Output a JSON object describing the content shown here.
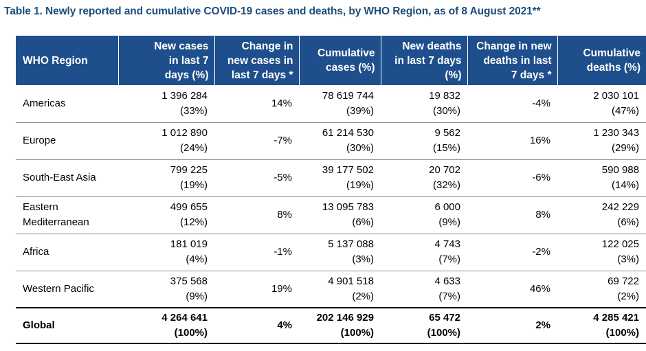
{
  "title": "Table 1. Newly reported and cumulative COVID-19 cases and deaths, by WHO Region, as of 8 August 2021**",
  "headers": {
    "region": "WHO Region",
    "new_cases_l1": "New cases",
    "new_cases_l2": "in last 7",
    "new_cases_l3": "days (%)",
    "change_cases_l1": "Change in",
    "change_cases_l2": "new cases in",
    "change_cases_l3": "last 7 days *",
    "cum_cases_l1": "Cumulative",
    "cum_cases_l2": "cases (%)",
    "new_deaths_l1": "New deaths",
    "new_deaths_l2": "in last 7 days",
    "new_deaths_l3": "(%)",
    "change_deaths_l1": "Change in new",
    "change_deaths_l2": "deaths in last",
    "change_deaths_l3": "7 days *",
    "cum_deaths_l1": "Cumulative",
    "cum_deaths_l2": "deaths (%)"
  },
  "rows": [
    {
      "region_l1": "Americas",
      "region_l2": "",
      "new_cases": "1 396 284",
      "new_cases_pct": "(33%)",
      "change_cases": "14%",
      "cum_cases": "78 619 744",
      "cum_cases_pct": "(39%)",
      "new_deaths": "19 832",
      "new_deaths_pct": "(30%)",
      "change_deaths": "-4%",
      "cum_deaths": "2 030 101",
      "cum_deaths_pct": "(47%)"
    },
    {
      "region_l1": "Europe",
      "region_l2": "",
      "new_cases": "1 012 890",
      "new_cases_pct": "(24%)",
      "change_cases": "-7%",
      "cum_cases": "61 214 530",
      "cum_cases_pct": "(30%)",
      "new_deaths": "9 562",
      "new_deaths_pct": "(15%)",
      "change_deaths": "16%",
      "cum_deaths": "1 230 343",
      "cum_deaths_pct": "(29%)"
    },
    {
      "region_l1": "South-East Asia",
      "region_l2": "",
      "new_cases": "799 225",
      "new_cases_pct": "(19%)",
      "change_cases": "-5%",
      "cum_cases": "39 177 502",
      "cum_cases_pct": "(19%)",
      "new_deaths": "20 702",
      "new_deaths_pct": "(32%)",
      "change_deaths": "-6%",
      "cum_deaths": "590 988",
      "cum_deaths_pct": "(14%)"
    },
    {
      "region_l1": "Eastern",
      "region_l2": "Mediterranean",
      "new_cases": "499 655",
      "new_cases_pct": "(12%)",
      "change_cases": "8%",
      "cum_cases": "13 095 783",
      "cum_cases_pct": "(6%)",
      "new_deaths": "6 000",
      "new_deaths_pct": "(9%)",
      "change_deaths": "8%",
      "cum_deaths": "242 229",
      "cum_deaths_pct": "(6%)"
    },
    {
      "region_l1": "Africa",
      "region_l2": "",
      "new_cases": "181 019",
      "new_cases_pct": "(4%)",
      "change_cases": "-1%",
      "cum_cases": "5 137 088",
      "cum_cases_pct": "(3%)",
      "new_deaths": "4 743",
      "new_deaths_pct": "(7%)",
      "change_deaths": "-2%",
      "cum_deaths": "122 025",
      "cum_deaths_pct": "(3%)"
    },
    {
      "region_l1": "Western Pacific",
      "region_l2": "",
      "new_cases": "375 568",
      "new_cases_pct": "(9%)",
      "change_cases": "19%",
      "cum_cases": "4 901 518",
      "cum_cases_pct": "(2%)",
      "new_deaths": "4 633",
      "new_deaths_pct": "(7%)",
      "change_deaths": "46%",
      "cum_deaths": "69 722",
      "cum_deaths_pct": "(2%)"
    }
  ],
  "global": {
    "region_l1": "Global",
    "region_l2": "",
    "new_cases": "4 264 641",
    "new_cases_pct": "(100%)",
    "change_cases": "4%",
    "cum_cases": "202 146 929",
    "cum_cases_pct": "(100%)",
    "new_deaths": "65 472",
    "new_deaths_pct": "(100%)",
    "change_deaths": "2%",
    "cum_deaths": "4 285 421",
    "cum_deaths_pct": "(100%)"
  },
  "colors": {
    "header_bg": "#1f4e8c",
    "title": "#1f4e79"
  }
}
